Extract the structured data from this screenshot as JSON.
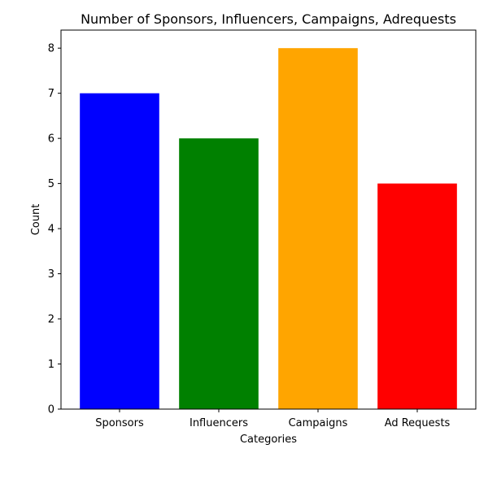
{
  "chart_data": {
    "type": "bar",
    "title": "Number of Sponsors, Influencers, Campaigns, Adrequests",
    "xlabel": "Categories",
    "ylabel": "Count",
    "categories": [
      "Sponsors",
      "Influencers",
      "Campaigns",
      "Ad Requests"
    ],
    "values": [
      7,
      6,
      8,
      5
    ],
    "colors": [
      "#0000ff",
      "#008000",
      "#ffa500",
      "#ff0000"
    ],
    "ylim": [
      0,
      8.4
    ],
    "yticks": [
      0,
      1,
      2,
      3,
      4,
      5,
      6,
      7,
      8
    ],
    "grid": false,
    "legend": "none"
  }
}
